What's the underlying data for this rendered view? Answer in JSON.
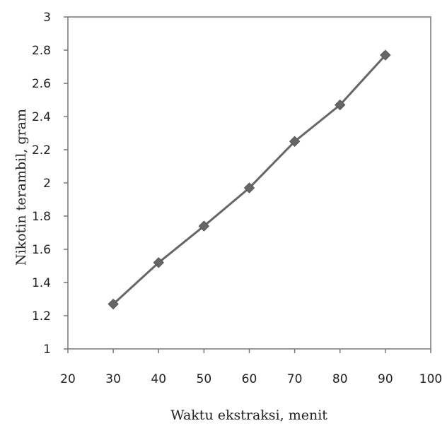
{
  "chart_data": {
    "type": "line",
    "title": "",
    "xlabel": "Waktu ekstraksi, menit",
    "ylabel": "Nikotin terambil, gram",
    "xlim": [
      20,
      100
    ],
    "ylim": [
      1,
      3
    ],
    "x_ticks": [
      "20",
      "30",
      "40",
      "50",
      "60",
      "70",
      "80",
      "90",
      "100"
    ],
    "y_ticks": [
      "1",
      "1.2",
      "1.4",
      "1.6",
      "1.8",
      "2",
      "2.2",
      "2.4",
      "2.6",
      "2.8",
      "3"
    ],
    "grid": false,
    "legend": "none",
    "marker": "diamond",
    "series": [
      {
        "x": [
          30,
          40,
          50,
          60,
          70,
          80,
          90
        ],
        "values": [
          1.27,
          1.52,
          1.74,
          1.97,
          2.25,
          2.47,
          2.77
        ],
        "color": "#666666"
      }
    ]
  }
}
